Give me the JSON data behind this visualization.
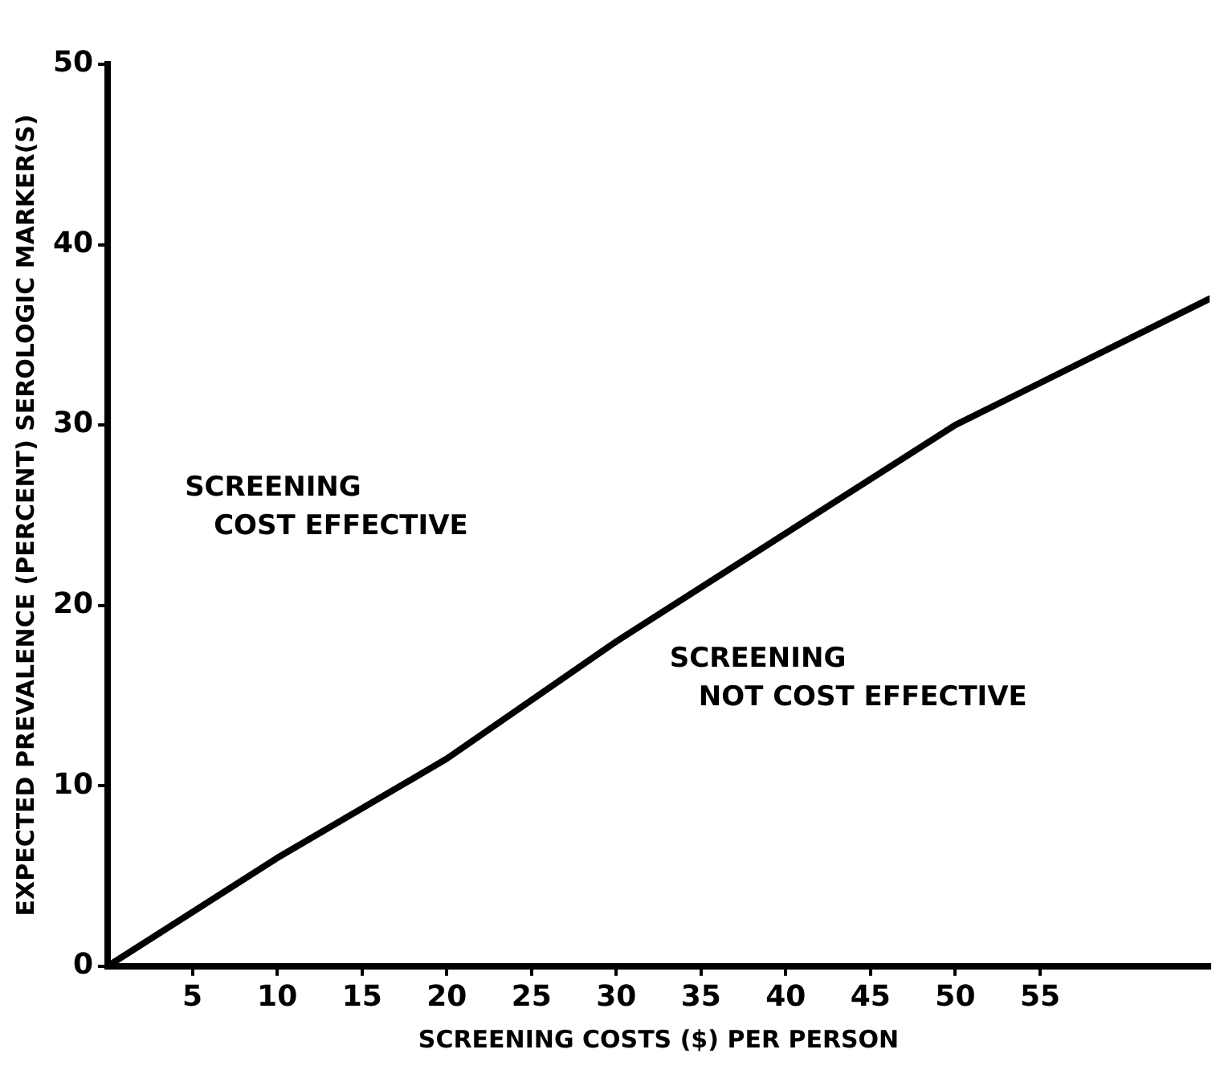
{
  "chart_data": {
    "type": "line",
    "xlabel": "SCREENING COSTS ($) PER PERSON",
    "ylabel": "EXPECTED PREVALENCE (PERCENT) SEROLOGIC MARKER(S)",
    "x": [
      0,
      10,
      20,
      30,
      40,
      50,
      65
    ],
    "series": [
      {
        "color": "#000000",
        "values": [
          0,
          6,
          11.5,
          18,
          24,
          30,
          37
        ]
      }
    ],
    "xlim": [
      0,
      65
    ],
    "xticks": [
      5,
      10,
      15,
      20,
      25,
      30,
      35,
      40,
      45,
      50,
      55
    ],
    "ylim": [
      0,
      50
    ],
    "yticks": [
      0,
      10,
      20,
      30,
      40,
      50
    ],
    "grid": false,
    "legend": false,
    "marker": "none",
    "line_style": "solid",
    "annotations": [
      "SCREENING\nCOST EFFECTIVE",
      "SCREENING\nNOT COST EFFECTIVE"
    ]
  }
}
